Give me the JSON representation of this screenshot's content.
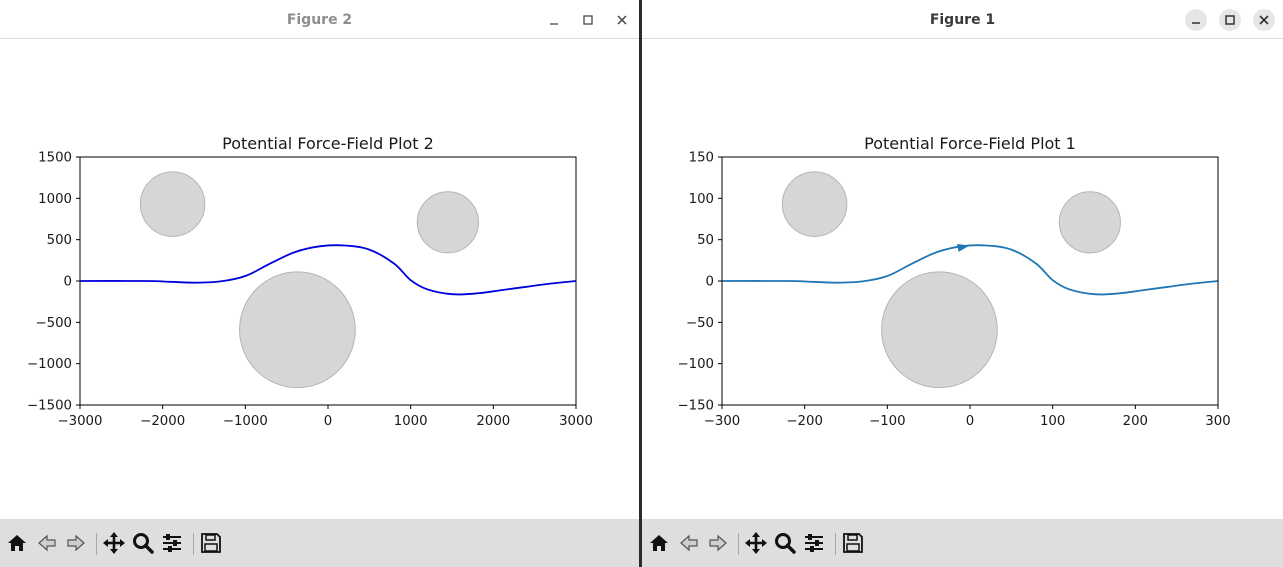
{
  "windows": [
    {
      "title": "Figure 2",
      "active": false,
      "line_color": "#0000dd",
      "plot": {
        "title": "Potential Force-Field Plot 2",
        "xlim": [
          -3000,
          3000
        ],
        "ylim": [
          -1500,
          1500
        ],
        "xticks": [
          -3000,
          -2000,
          -1000,
          0,
          1000,
          2000,
          3000
        ],
        "yticks": [
          -1500,
          -1000,
          -500,
          0,
          500,
          1000,
          1500
        ],
        "xtick_labels": [
          "−3000",
          "−2000",
          "−1000",
          "0",
          "1000",
          "2000",
          "3000"
        ],
        "ytick_labels": [
          "−1500",
          "−1000",
          "−500",
          "0",
          "500",
          "1000",
          "1500"
        ],
        "obstacles": [
          {
            "cx": -1880,
            "cy": 930,
            "r": 390
          },
          {
            "cx": 1450,
            "cy": 710,
            "r": 370
          },
          {
            "cx": -370,
            "cy": -590,
            "r": 700
          }
        ],
        "path": {
          "x": [
            -3000,
            -2200,
            -1900,
            -1600,
            -1300,
            -1000,
            -700,
            -400,
            -100,
            200,
            500,
            800,
            1000,
            1200,
            1500,
            1800,
            2100,
            2400,
            2700,
            3000
          ],
          "y": [
            0,
            0,
            -10,
            -20,
            -5,
            60,
            210,
            350,
            420,
            430,
            380,
            210,
            10,
            -100,
            -160,
            -150,
            -110,
            -70,
            -30,
            0
          ]
        },
        "arrow": null
      },
      "toolbar_icons": [
        "home-icon",
        "back-icon",
        "forward-icon",
        "pan-icon",
        "zoom-icon",
        "configure-icon",
        "save-icon"
      ]
    },
    {
      "title": "Figure 1",
      "active": true,
      "line_color": "#1f77b4",
      "plot": {
        "title": "Potential Force-Field Plot 1",
        "xlim": [
          -300,
          300
        ],
        "ylim": [
          -150,
          150
        ],
        "xticks": [
          -300,
          -200,
          -100,
          0,
          100,
          200,
          300
        ],
        "yticks": [
          -150,
          -100,
          -50,
          0,
          50,
          100,
          150
        ],
        "xtick_labels": [
          "−300",
          "−200",
          "−100",
          "0",
          "100",
          "200",
          "300"
        ],
        "ytick_labels": [
          "−150",
          "−100",
          "−50",
          "0",
          "50",
          "100",
          "150"
        ],
        "obstacles": [
          {
            "cx": -188,
            "cy": 93,
            "r": 39
          },
          {
            "cx": 145,
            "cy": 71,
            "r": 37
          },
          {
            "cx": -37,
            "cy": -59,
            "r": 70
          }
        ],
        "path": {
          "x": [
            -300,
            -220,
            -190,
            -160,
            -130,
            -100,
            -70,
            -40,
            -10,
            20,
            50,
            80,
            100,
            120,
            150,
            180,
            210,
            240,
            270,
            300
          ],
          "y": [
            0,
            0,
            -1,
            -2,
            -0.5,
            6,
            21,
            35,
            42,
            43,
            38,
            21,
            1,
            -10,
            -16,
            -15,
            -11,
            -7,
            -3,
            0
          ]
        },
        "arrow": {
          "x": -10,
          "y": 41
        }
      },
      "toolbar_icons": [
        "home-icon",
        "back-icon",
        "forward-icon",
        "pan-icon",
        "zoom-icon",
        "configure-icon",
        "save-icon"
      ]
    }
  ]
}
